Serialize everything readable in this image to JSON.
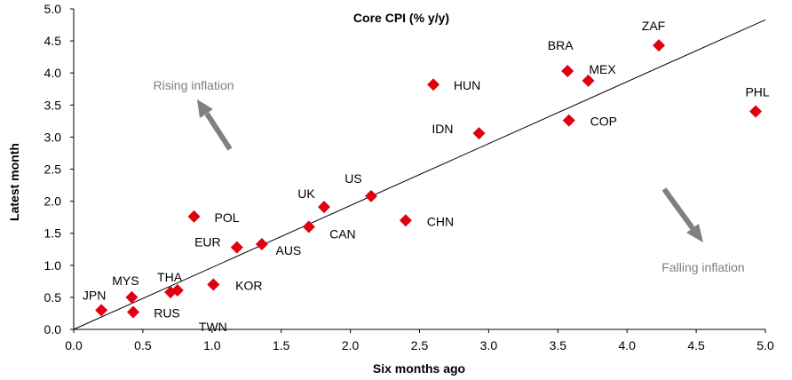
{
  "chart_data": {
    "type": "scatter",
    "title": "Core CPI (% y/y)",
    "xlabel": "Six months ago",
    "ylabel": "Latest month",
    "xlim": [
      0,
      5
    ],
    "ylim": [
      0,
      5
    ],
    "xticks": [
      "0.0",
      "0.5",
      "1.0",
      "1.5",
      "2.0",
      "2.5",
      "3.0",
      "3.5",
      "4.0",
      "4.5",
      "5.0"
    ],
    "yticks": [
      "0.0",
      "0.5",
      "1.0",
      "1.5",
      "2.0",
      "2.5",
      "3.0",
      "3.5",
      "4.0",
      "4.5",
      "5.0"
    ],
    "grid": false,
    "marker_color": "#e0000f",
    "points": [
      {
        "label": "JPN",
        "x": 0.2,
        "y": 0.3
      },
      {
        "label": "MYS",
        "x": 0.42,
        "y": 0.5
      },
      {
        "label": "RUS",
        "x": 0.43,
        "y": 0.27
      },
      {
        "label": "THA",
        "x": 0.7,
        "y": 0.58
      },
      {
        "label": "TWN",
        "x": 0.75,
        "y": 0.61
      },
      {
        "label": "KOR",
        "x": 1.01,
        "y": 0.7
      },
      {
        "label": "POL",
        "x": 0.87,
        "y": 1.76
      },
      {
        "label": "EUR",
        "x": 1.18,
        "y": 1.28
      },
      {
        "label": "AUS",
        "x": 1.36,
        "y": 1.33
      },
      {
        "label": "CAN",
        "x": 1.7,
        "y": 1.6
      },
      {
        "label": "UK",
        "x": 1.81,
        "y": 1.91
      },
      {
        "label": "US",
        "x": 2.15,
        "y": 2.08
      },
      {
        "label": "CHN",
        "x": 2.4,
        "y": 1.7
      },
      {
        "label": "HUN",
        "x": 2.6,
        "y": 3.82
      },
      {
        "label": "IDN",
        "x": 2.93,
        "y": 3.06
      },
      {
        "label": "BRA",
        "x": 3.57,
        "y": 4.03
      },
      {
        "label": "COP",
        "x": 3.58,
        "y": 3.26
      },
      {
        "label": "MEX",
        "x": 3.72,
        "y": 3.88
      },
      {
        "label": "ZAF",
        "x": 4.23,
        "y": 4.43
      },
      {
        "label": "PHL",
        "x": 4.93,
        "y": 3.4
      }
    ],
    "trend_line": {
      "x": [
        0,
        5
      ],
      "y": [
        0,
        4.83
      ]
    },
    "annotations": [
      {
        "text": "Rising inflation",
        "color": "#7f7f7f"
      },
      {
        "text": "Falling inflation",
        "color": "#7f7f7f"
      }
    ]
  }
}
